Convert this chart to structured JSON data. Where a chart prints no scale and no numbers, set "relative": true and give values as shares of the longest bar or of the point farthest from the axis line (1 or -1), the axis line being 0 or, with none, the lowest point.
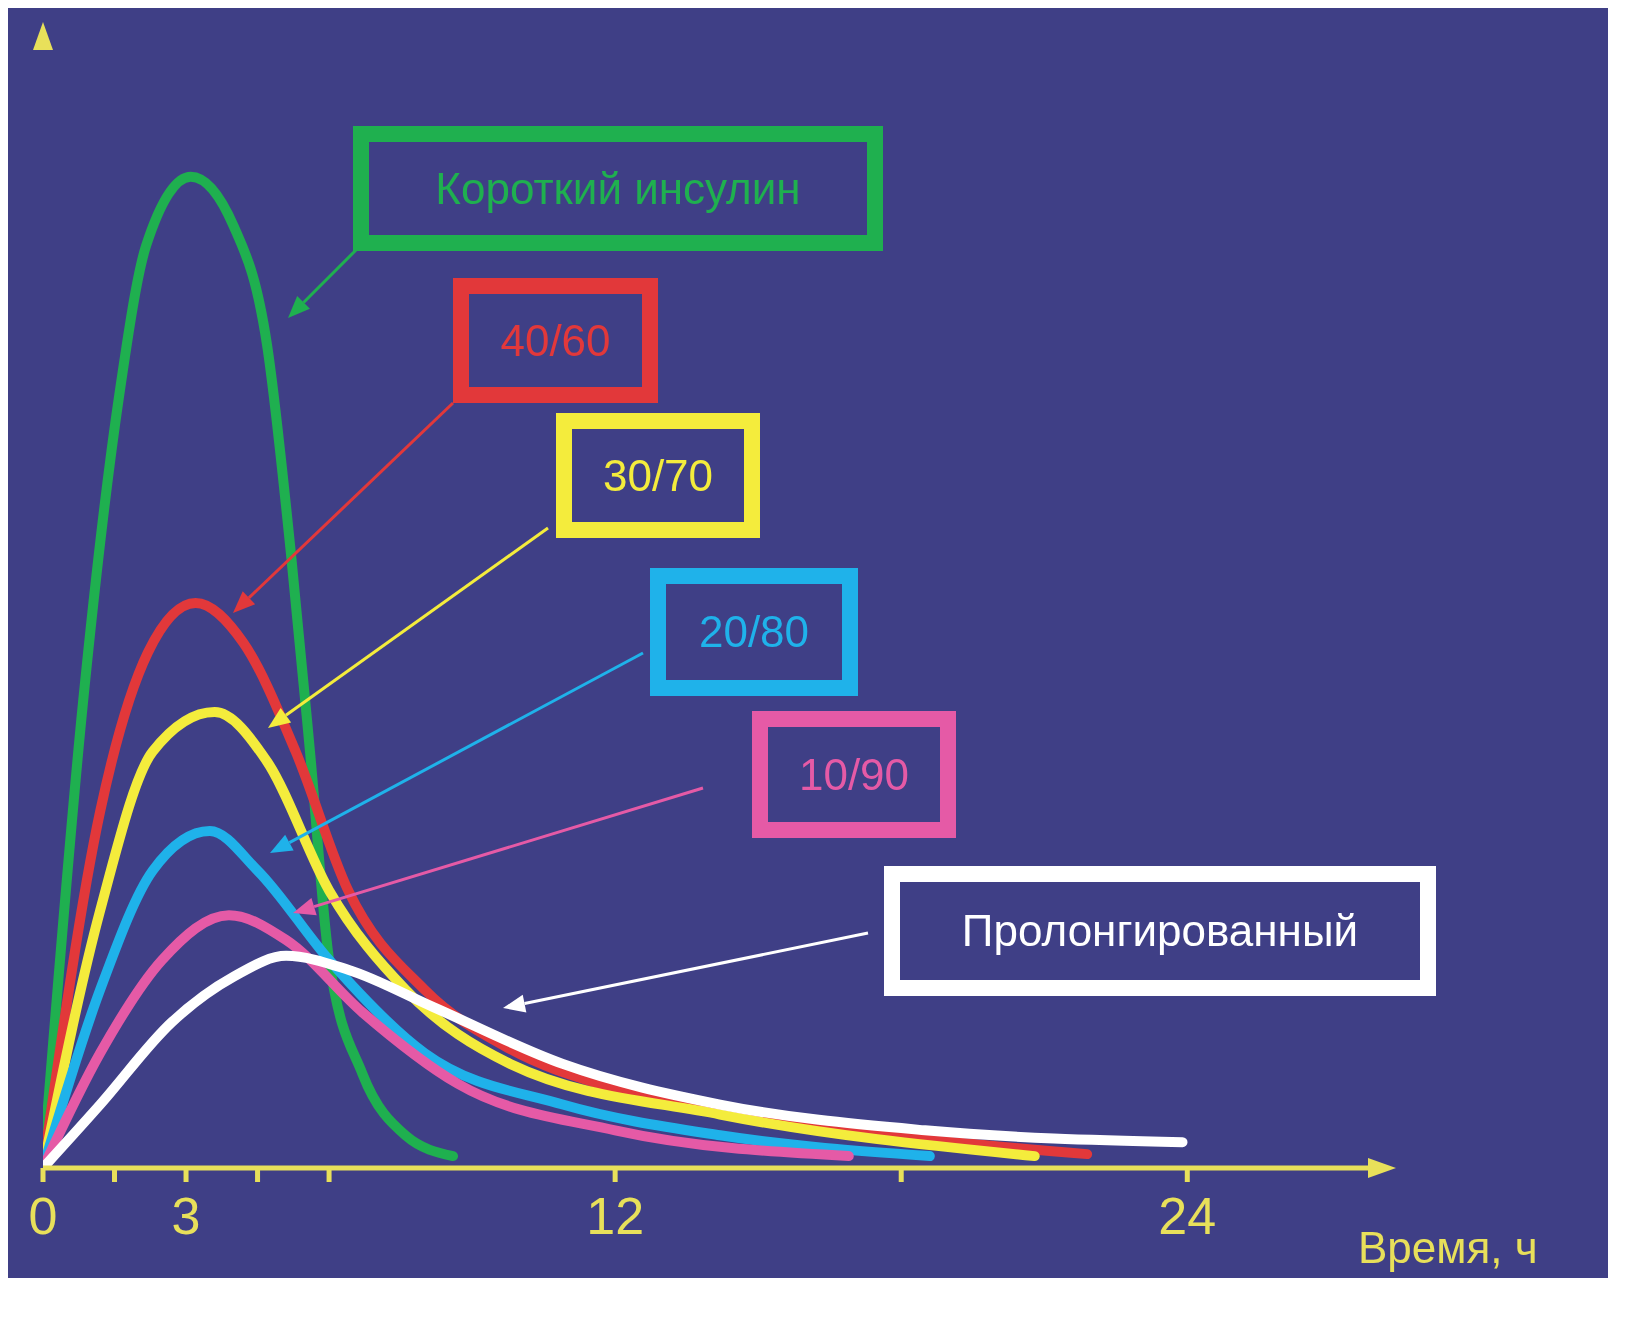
{
  "chart_data": {
    "type": "line",
    "relative": true,
    "xlabel": "Время, ч",
    "xlim": [
      0,
      28
    ],
    "xticks": [
      0,
      {
        "value": 1.5,
        "label": null
      },
      3,
      {
        "value": 4.5,
        "label": null
      },
      {
        "value": 6,
        "label": null
      },
      12,
      {
        "value": 18,
        "label": null
      },
      24
    ],
    "legend": false,
    "grid": false,
    "marker": "none",
    "line_style": "solid",
    "series": [
      {
        "name": "Короткий инсулин",
        "color": "#1fb04f",
        "x": [
          0,
          0.84,
          1.6,
          2.16,
          3.1,
          4.0,
          4.7,
          5.2,
          5.6,
          6.0,
          6.7,
          7.6,
          8.6
        ],
        "values": [
          0,
          0.47,
          0.78,
          0.93,
          1.0,
          0.95,
          0.83,
          0.62,
          0.42,
          0.21,
          0.095,
          0.033,
          0.012
        ]
      },
      {
        "name": "40/60",
        "color": "#e2383a",
        "x": [
          0,
          1.2,
          2.2,
          3.2,
          4.2,
          5.3,
          6.4,
          8.0,
          9.8,
          12,
          16.2,
          21.9
        ],
        "values": [
          0,
          0.36,
          0.52,
          0.57,
          0.53,
          0.42,
          0.28,
          0.18,
          0.12,
          0.08,
          0.043,
          0.014
        ]
      },
      {
        "name": "30/70",
        "color": "#f4ec3c",
        "x": [
          0,
          1.2,
          2.3,
          3.6,
          4.7,
          6,
          7.6,
          9.8,
          14.2,
          20.8
        ],
        "values": [
          0,
          0.26,
          0.42,
          0.46,
          0.41,
          0.28,
          0.18,
          0.105,
          0.054,
          0.012
        ]
      },
      {
        "name": "20/80",
        "color": "#1fb2ea",
        "x": [
          0,
          1.2,
          2.3,
          3.5,
          4.5,
          6,
          8,
          10.9,
          14.2,
          18.6
        ],
        "values": [
          0,
          0.18,
          0.3,
          0.34,
          0.3,
          0.21,
          0.116,
          0.064,
          0.033,
          0.012
        ]
      },
      {
        "name": "10/90",
        "color": "#e55aa6",
        "x": [
          0,
          1.2,
          2.5,
          3.9,
          5.1,
          6.7,
          8.7,
          12,
          16.9
        ],
        "values": [
          0,
          0.116,
          0.21,
          0.255,
          0.23,
          0.157,
          0.085,
          0.038,
          0.012
        ]
      },
      {
        "name": "Пролонгированный",
        "color": "#ffffff",
        "x": [
          0,
          1.2,
          2.7,
          4.0,
          5.1,
          6.4,
          8.2,
          10.9,
          14.2,
          18.5,
          23.9
        ],
        "values": [
          0,
          0.064,
          0.147,
          0.193,
          0.214,
          0.2,
          0.162,
          0.105,
          0.064,
          0.038,
          0.026
        ]
      }
    ]
  }
}
